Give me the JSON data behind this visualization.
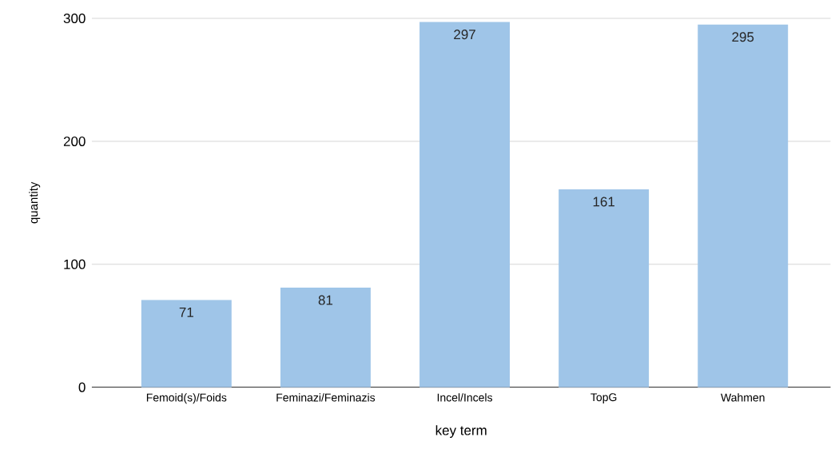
{
  "chart_data": {
    "type": "bar",
    "xlabel": "key term",
    "ylabel": "quantity",
    "categories": [
      "Femoid(s)/Foids",
      "Feminazi/Feminazis",
      "Incel/Incels",
      "TopG",
      "Wahmen"
    ],
    "values": [
      71,
      81,
      297,
      161,
      295
    ],
    "value_labels": [
      "71",
      "81",
      "297",
      "161",
      "295"
    ],
    "color": "#9fc5e8",
    "ylim": [
      0,
      300
    ],
    "yticks": [
      0,
      100,
      200,
      300
    ],
    "grid": "y"
  }
}
